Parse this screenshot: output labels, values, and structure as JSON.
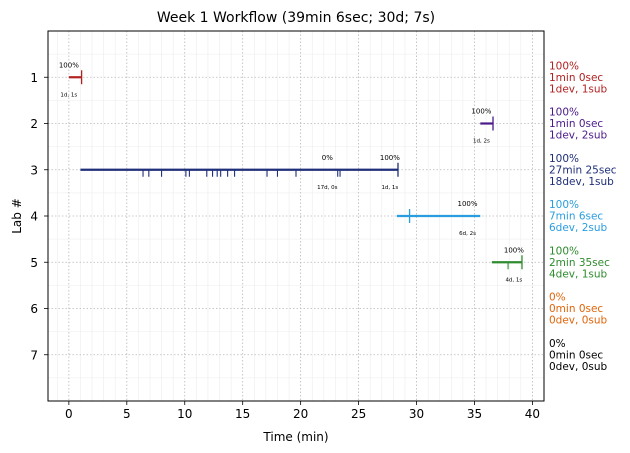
{
  "chart_data": {
    "type": "timeline",
    "title": "Week 1 Workflow (39min 6sec; 30d; 7s)",
    "xlabel": "Time (min)",
    "ylabel": "Lab #",
    "xlim": [
      -1.8,
      41
    ],
    "ylim": [
      8,
      0
    ],
    "xticks": [
      0,
      5,
      10,
      15,
      20,
      25,
      30,
      35,
      40
    ],
    "yticks": [
      1,
      2,
      3,
      4,
      5,
      6,
      7
    ],
    "grid": true,
    "labs": [
      {
        "lab": 1,
        "color": "#b22222",
        "segments": [
          {
            "start": 0.0,
            "end": 1.1
          }
        ],
        "ticks": [
          1.1
        ],
        "submit_ticks": [],
        "annotations": [
          {
            "x": 0.0,
            "pct": "100%",
            "sub": "1d, 1s"
          }
        ],
        "side": [
          "100%",
          "1min 0sec",
          "1dev, 1sub"
        ]
      },
      {
        "lab": 2,
        "color": "#4b1a8a",
        "segments": [
          {
            "start": 35.5,
            "end": 36.6
          }
        ],
        "ticks": [
          36.6
        ],
        "submit_ticks": [],
        "annotations": [
          {
            "x": 35.6,
            "pct": "100%",
            "sub": "1d, 2s"
          }
        ],
        "side": [
          "100%",
          "1min 0sec",
          "1dev, 2sub"
        ]
      },
      {
        "lab": 3,
        "color": "#1f2f7a",
        "segments": [
          {
            "start": 1.0,
            "end": 28.4
          }
        ],
        "ticks": [
          28.4
        ],
        "submit_ticks": [
          6.4,
          6.9,
          8.0,
          10.1,
          10.4,
          11.9,
          12.4,
          12.8,
          13.1,
          13.7,
          14.3,
          17.1,
          18.0,
          19.6,
          23.2,
          23.4
        ],
        "annotations": [
          {
            "x": 22.3,
            "pct": "0%",
            "sub": "17d, 0s"
          },
          {
            "x": 27.7,
            "pct": "100%",
            "sub": "1d, 1s"
          }
        ],
        "side": [
          "100%",
          "27min 25sec",
          "18dev, 1sub"
        ]
      },
      {
        "lab": 4,
        "color": "#2a9de0",
        "segments": [
          {
            "start": 28.3,
            "end": 35.5
          }
        ],
        "ticks": [
          29.4
        ],
        "submit_ticks": [],
        "annotations": [
          {
            "x": 34.4,
            "pct": "100%",
            "sub": "6d, 2s"
          }
        ],
        "side": [
          "100%",
          "7min 6sec",
          "6dev, 2sub"
        ]
      },
      {
        "lab": 5,
        "color": "#2e8b2e",
        "segments": [
          {
            "start": 36.5,
            "end": 39.1
          }
        ],
        "ticks": [
          39.1
        ],
        "submit_ticks": [
          37.9
        ],
        "annotations": [
          {
            "x": 38.4,
            "pct": "100%",
            "sub": "4d, 1s"
          }
        ],
        "side": [
          "100%",
          "2min 35sec",
          "4dev, 1sub"
        ]
      },
      {
        "lab": 6,
        "color": "#e0650a",
        "segments": [],
        "ticks": [],
        "submit_ticks": [],
        "annotations": [],
        "side": [
          "0%",
          "0min 0sec",
          "0dev, 0sub"
        ]
      },
      {
        "lab": 7,
        "color": "#000000",
        "segments": [],
        "ticks": [],
        "submit_ticks": [],
        "annotations": [],
        "side": [
          "0%",
          "0min 0sec",
          "0dev, 0sub"
        ]
      }
    ]
  }
}
